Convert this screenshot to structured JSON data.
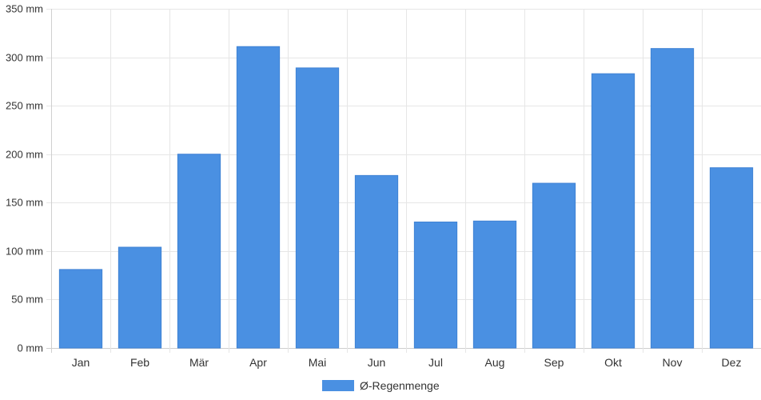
{
  "chart_data": {
    "type": "bar",
    "categories": [
      "Jan",
      "Feb",
      "Mär",
      "Apr",
      "Mai",
      "Jun",
      "Jul",
      "Aug",
      "Sep",
      "Okt",
      "Nov",
      "Dez"
    ],
    "series": [
      {
        "name": "Ø-Regenmenge",
        "values": [
          81,
          104,
          200,
          311,
          289,
          178,
          130,
          131,
          170,
          283,
          309,
          186
        ],
        "color": "#4a90e2"
      }
    ],
    "ylim": [
      0,
      350
    ],
    "y_ticks": [
      0,
      50,
      100,
      150,
      200,
      250,
      300,
      350
    ],
    "y_unit": "mm",
    "y_tick_labels": [
      "0 mm",
      "50 mm",
      "100 mm",
      "150 mm",
      "200 mm",
      "250 mm",
      "300 mm",
      "350 mm"
    ],
    "grid": true,
    "legend_position": "bottom-center"
  }
}
